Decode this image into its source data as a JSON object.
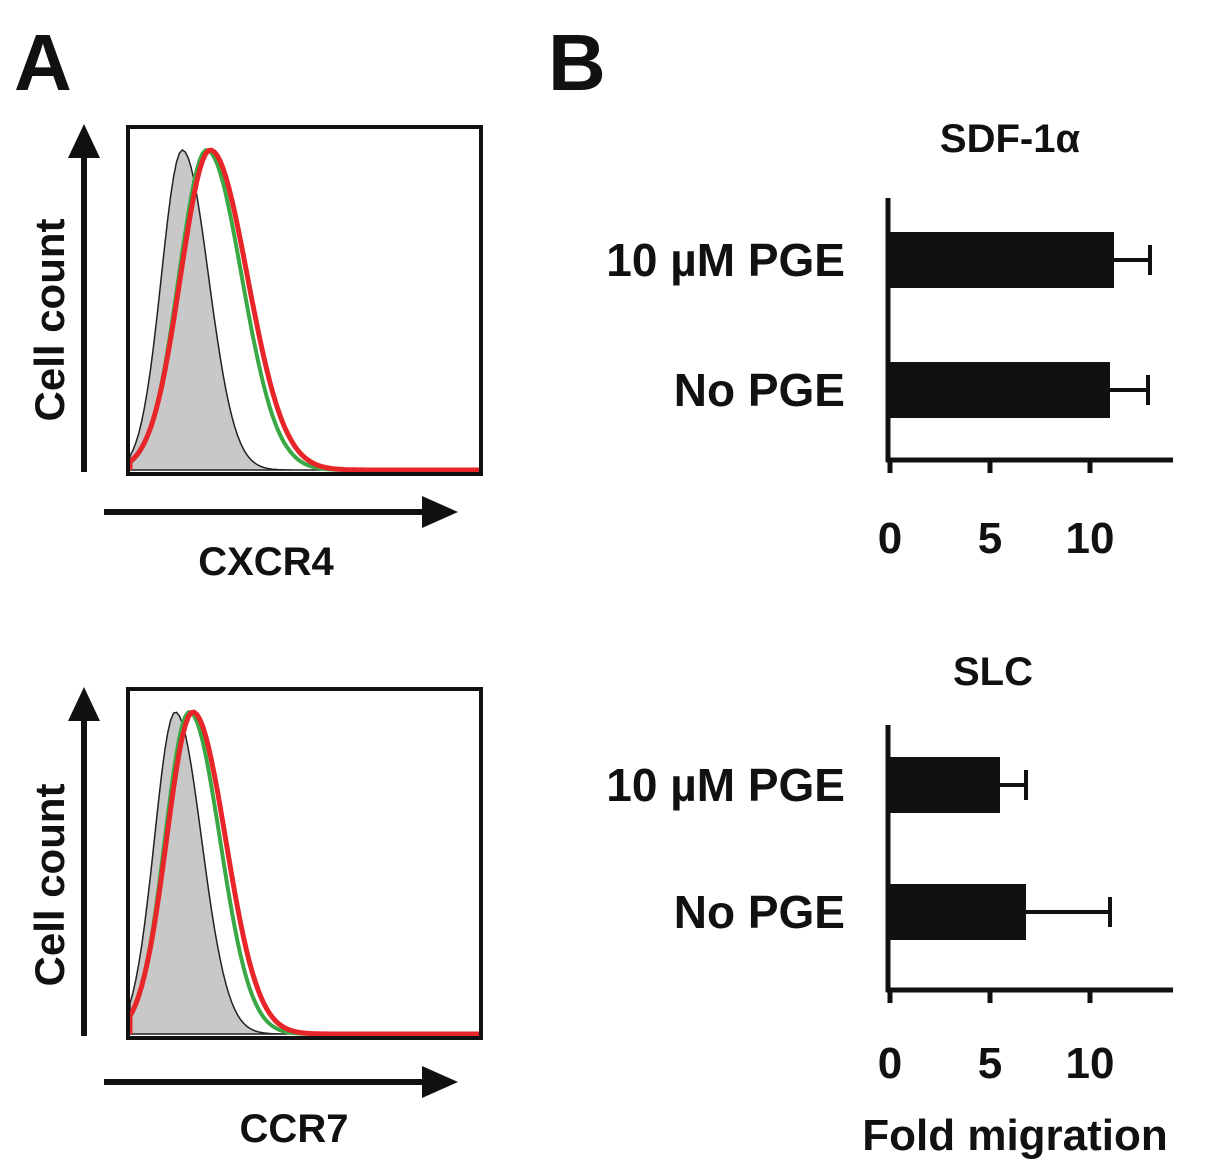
{
  "panel_labels": {
    "a": "A",
    "b": "B"
  },
  "colors": {
    "isotype_fill": "#c8c8c8",
    "white_trace": "#ffffff",
    "green_trace": "#3aa845",
    "blue_trace": "#1f78c8",
    "red_trace": "#e8262a",
    "bar": "#111111"
  },
  "chart_data": [
    {
      "type": "histogram",
      "panel": "A",
      "xlabel": "CXCR4",
      "ylabel": "Cell count",
      "series": [
        {
          "color_key": "isotype_fill",
          "peak_x": 0.15,
          "width": 0.06,
          "fill": true
        },
        {
          "color_key": "white_trace",
          "peak_x": 0.22,
          "width": 0.08,
          "fill": false
        },
        {
          "color_key": "green_trace",
          "peak_x": 0.22,
          "width": 0.08,
          "fill": false
        },
        {
          "color_key": "blue_trace",
          "peak_x": 0.23,
          "width": 0.085,
          "fill": false
        },
        {
          "color_key": "red_trace",
          "peak_x": 0.23,
          "width": 0.085,
          "fill": false
        }
      ]
    },
    {
      "type": "histogram",
      "panel": "A",
      "xlabel": "CCR7",
      "ylabel": "Cell count",
      "series": [
        {
          "color_key": "isotype_fill",
          "peak_x": 0.13,
          "width": 0.06,
          "fill": true
        },
        {
          "color_key": "white_trace",
          "peak_x": 0.17,
          "width": 0.07,
          "fill": false
        },
        {
          "color_key": "green_trace",
          "peak_x": 0.17,
          "width": 0.07,
          "fill": false
        },
        {
          "color_key": "blue_trace",
          "peak_x": 0.18,
          "width": 0.075,
          "fill": false
        },
        {
          "color_key": "red_trace",
          "peak_x": 0.18,
          "width": 0.075,
          "fill": false
        }
      ]
    },
    {
      "type": "bar",
      "orientation": "horizontal",
      "panel": "B",
      "title": "SDF-1α",
      "categories": [
        "10 µM PGE",
        "No PGE"
      ],
      "values": [
        11.2,
        11.0
      ],
      "errors": [
        1.8,
        1.9
      ],
      "xlim": [
        0,
        14
      ],
      "xticks": [
        0,
        5,
        10
      ],
      "xlabel": ""
    },
    {
      "type": "bar",
      "orientation": "horizontal",
      "panel": "B",
      "title": "SLC",
      "categories": [
        "10 µM PGE",
        "No PGE"
      ],
      "values": [
        5.5,
        6.8
      ],
      "errors": [
        1.3,
        4.2
      ],
      "xlim": [
        0,
        14
      ],
      "xticks": [
        0,
        5,
        10
      ],
      "xlabel": "Fold migration"
    }
  ]
}
